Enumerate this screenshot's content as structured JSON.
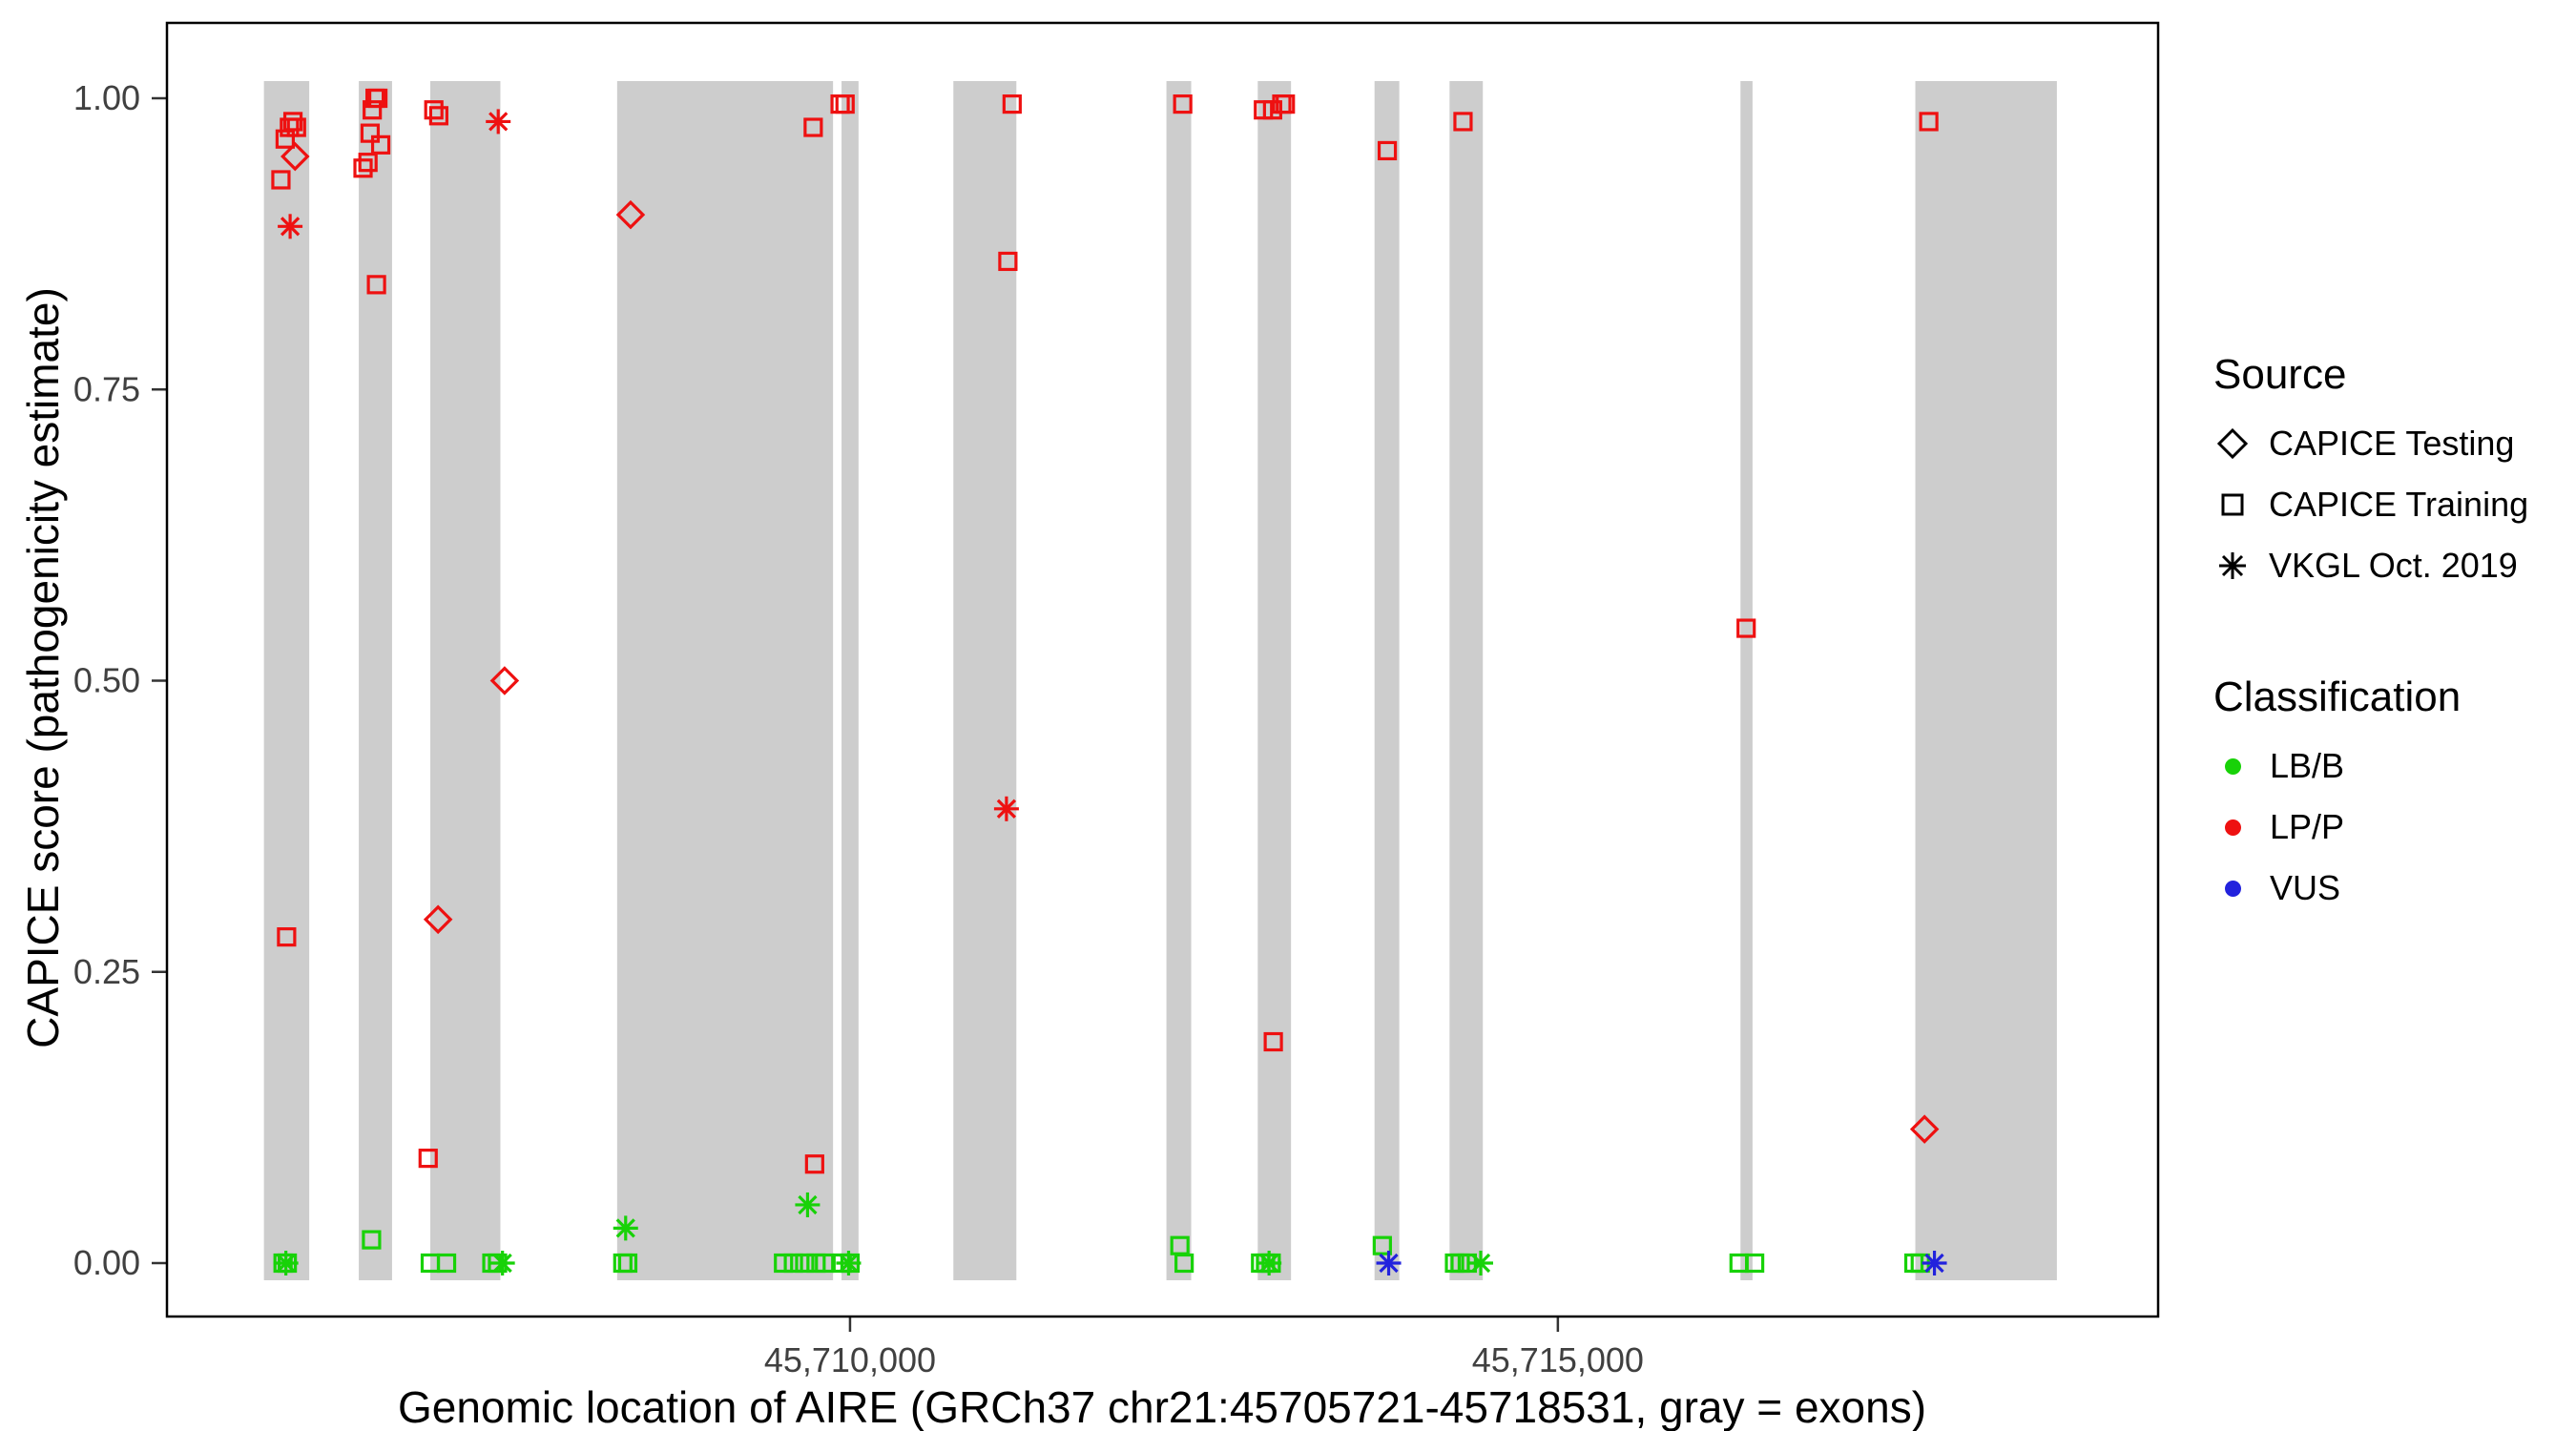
{
  "figure": {
    "x_axis_label": "Genomic location of AIRE (GRCh37 chr21:45705721-45718531, gray = exons)",
    "y_axis_label": "CAPICE score (pathogenicity estimate)"
  },
  "legend": {
    "source_title": "Source",
    "source_items": [
      {
        "label": "CAPICE Testing",
        "shape": "diamond"
      },
      {
        "label": "CAPICE Training",
        "shape": "square"
      },
      {
        "label": "VKGL Oct. 2019",
        "shape": "asterisk"
      }
    ],
    "classification_title": "Classification",
    "classification_items": [
      {
        "label": "LB/B",
        "class": "LB/B"
      },
      {
        "label": "LP/P",
        "class": "LP/P"
      },
      {
        "label": "VUS",
        "class": "VUS"
      }
    ]
  },
  "chart_data": {
    "type": "scatter",
    "title": "",
    "xlabel": "Genomic location of AIRE (GRCh37 chr21:45705721-45718531, gray = exons)",
    "ylabel": "CAPICE score (pathogenicity estimate)",
    "xlim": [
      45705175,
      45719240
    ],
    "ylim": [
      0,
      1
    ],
    "grid": false,
    "legend_position": "right",
    "x_ticks": [
      {
        "value": 45710000,
        "label": "45,710,000"
      },
      {
        "value": 45715000,
        "label": "45,715,000"
      }
    ],
    "y_ticks": [
      {
        "value": 0.0,
        "label": "0.00"
      },
      {
        "value": 0.25,
        "label": "0.25"
      },
      {
        "value": 0.5,
        "label": "0.50"
      },
      {
        "value": 0.75,
        "label": "0.75"
      },
      {
        "value": 1.0,
        "label": "1.00"
      }
    ],
    "exon_color": "#CDCDCD",
    "exons": [
      [
        45705860,
        45706180
      ],
      [
        45706530,
        45706765
      ],
      [
        45707035,
        45707530
      ],
      [
        45708355,
        45709880
      ],
      [
        45709940,
        45710060
      ],
      [
        45710730,
        45711175
      ],
      [
        45712235,
        45712410
      ],
      [
        45712880,
        45713115
      ],
      [
        45713705,
        45713880
      ],
      [
        45714235,
        45714470
      ],
      [
        45716290,
        45716375
      ],
      [
        45717525,
        45718525
      ]
    ],
    "colors": {
      "LB/B": "#18D208",
      "LP/P": "#EE1111",
      "VUS": "#2222DD"
    },
    "shapes": {
      "CAPICE Testing": "diamond",
      "CAPICE Training": "square",
      "VKGL Oct. 2019": "asterisk"
    },
    "points": [
      {
        "x": 45705980,
        "y": 0.93,
        "source": "CAPICE Training",
        "class": "LP/P"
      },
      {
        "x": 45706010,
        "y": 0.965,
        "source": "CAPICE Training",
        "class": "LP/P"
      },
      {
        "x": 45706040,
        "y": 0.975,
        "source": "CAPICE Training",
        "class": "LP/P"
      },
      {
        "x": 45706065,
        "y": 0.98,
        "source": "CAPICE Training",
        "class": "LP/P"
      },
      {
        "x": 45706090,
        "y": 0.975,
        "source": "CAPICE Training",
        "class": "LP/P"
      },
      {
        "x": 45706020,
        "y": 0.28,
        "source": "CAPICE Training",
        "class": "LP/P"
      },
      {
        "x": 45706560,
        "y": 0.94,
        "source": "CAPICE Training",
        "class": "LP/P"
      },
      {
        "x": 45706595,
        "y": 0.945,
        "source": "CAPICE Training",
        "class": "LP/P"
      },
      {
        "x": 45706610,
        "y": 0.97,
        "source": "CAPICE Training",
        "class": "LP/P"
      },
      {
        "x": 45706625,
        "y": 0.99,
        "source": "CAPICE Training",
        "class": "LP/P"
      },
      {
        "x": 45706645,
        "y": 1.0,
        "source": "CAPICE Training",
        "class": "LP/P"
      },
      {
        "x": 45706665,
        "y": 1.0,
        "source": "CAPICE Training",
        "class": "LP/P"
      },
      {
        "x": 45706685,
        "y": 0.96,
        "source": "CAPICE Training",
        "class": "LP/P"
      },
      {
        "x": 45706655,
        "y": 0.84,
        "source": "CAPICE Training",
        "class": "LP/P"
      },
      {
        "x": 45707060,
        "y": 0.99,
        "source": "CAPICE Training",
        "class": "LP/P"
      },
      {
        "x": 45707095,
        "y": 0.985,
        "source": "CAPICE Training",
        "class": "LP/P"
      },
      {
        "x": 45707020,
        "y": 0.09,
        "source": "CAPICE Training",
        "class": "LP/P"
      },
      {
        "x": 45709740,
        "y": 0.975,
        "source": "CAPICE Training",
        "class": "LP/P"
      },
      {
        "x": 45709930,
        "y": 0.995,
        "source": "CAPICE Training",
        "class": "LP/P"
      },
      {
        "x": 45709965,
        "y": 0.995,
        "source": "CAPICE Training",
        "class": "LP/P"
      },
      {
        "x": 45709750,
        "y": 0.085,
        "source": "CAPICE Training",
        "class": "LP/P"
      },
      {
        "x": 45711145,
        "y": 0.995,
        "source": "CAPICE Training",
        "class": "LP/P"
      },
      {
        "x": 45711115,
        "y": 0.86,
        "source": "CAPICE Training",
        "class": "LP/P"
      },
      {
        "x": 45712350,
        "y": 0.995,
        "source": "CAPICE Training",
        "class": "LP/P"
      },
      {
        "x": 45712920,
        "y": 0.99,
        "source": "CAPICE Training",
        "class": "LP/P"
      },
      {
        "x": 45712985,
        "y": 0.99,
        "source": "CAPICE Training",
        "class": "LP/P"
      },
      {
        "x": 45713050,
        "y": 0.995,
        "source": "CAPICE Training",
        "class": "LP/P"
      },
      {
        "x": 45713075,
        "y": 0.995,
        "source": "CAPICE Training",
        "class": "LP/P"
      },
      {
        "x": 45712990,
        "y": 0.19,
        "source": "CAPICE Training",
        "class": "LP/P"
      },
      {
        "x": 45713795,
        "y": 0.955,
        "source": "CAPICE Training",
        "class": "LP/P"
      },
      {
        "x": 45714330,
        "y": 0.98,
        "source": "CAPICE Training",
        "class": "LP/P"
      },
      {
        "x": 45716330,
        "y": 0.545,
        "source": "CAPICE Training",
        "class": "LP/P"
      },
      {
        "x": 45717620,
        "y": 0.98,
        "source": "CAPICE Training",
        "class": "LP/P"
      },
      {
        "x": 45705995,
        "y": 0.0,
        "source": "CAPICE Training",
        "class": "LB/B"
      },
      {
        "x": 45706025,
        "y": 0.0,
        "source": "CAPICE Training",
        "class": "LB/B"
      },
      {
        "x": 45706620,
        "y": 0.02,
        "source": "CAPICE Training",
        "class": "LB/B"
      },
      {
        "x": 45707035,
        "y": 0.0,
        "source": "CAPICE Training",
        "class": "LB/B"
      },
      {
        "x": 45707150,
        "y": 0.0,
        "source": "CAPICE Training",
        "class": "LB/B"
      },
      {
        "x": 45707470,
        "y": 0.0,
        "source": "CAPICE Training",
        "class": "LB/B"
      },
      {
        "x": 45707510,
        "y": 0.0,
        "source": "CAPICE Training",
        "class": "LB/B"
      },
      {
        "x": 45708395,
        "y": 0.0,
        "source": "CAPICE Training",
        "class": "LB/B"
      },
      {
        "x": 45708430,
        "y": 0.0,
        "source": "CAPICE Training",
        "class": "LB/B"
      },
      {
        "x": 45709530,
        "y": 0.0,
        "source": "CAPICE Training",
        "class": "LB/B"
      },
      {
        "x": 45709600,
        "y": 0.0,
        "source": "CAPICE Training",
        "class": "LB/B"
      },
      {
        "x": 45709680,
        "y": 0.0,
        "source": "CAPICE Training",
        "class": "LB/B"
      },
      {
        "x": 45709760,
        "y": 0.0,
        "source": "CAPICE Training",
        "class": "LB/B"
      },
      {
        "x": 45709820,
        "y": 0.0,
        "source": "CAPICE Training",
        "class": "LB/B"
      },
      {
        "x": 45709945,
        "y": 0.0,
        "source": "CAPICE Training",
        "class": "LB/B"
      },
      {
        "x": 45710000,
        "y": 0.0,
        "source": "CAPICE Training",
        "class": "LB/B"
      },
      {
        "x": 45712330,
        "y": 0.015,
        "source": "CAPICE Training",
        "class": "LB/B"
      },
      {
        "x": 45712360,
        "y": 0.0,
        "source": "CAPICE Training",
        "class": "LB/B"
      },
      {
        "x": 45712900,
        "y": 0.0,
        "source": "CAPICE Training",
        "class": "LB/B"
      },
      {
        "x": 45712935,
        "y": 0.0,
        "source": "CAPICE Training",
        "class": "LB/B"
      },
      {
        "x": 45712975,
        "y": 0.0,
        "source": "CAPICE Training",
        "class": "LB/B"
      },
      {
        "x": 45713760,
        "y": 0.015,
        "source": "CAPICE Training",
        "class": "LB/B"
      },
      {
        "x": 45714270,
        "y": 0.0,
        "source": "CAPICE Training",
        "class": "LB/B"
      },
      {
        "x": 45714310,
        "y": 0.0,
        "source": "CAPICE Training",
        "class": "LB/B"
      },
      {
        "x": 45714360,
        "y": 0.0,
        "source": "CAPICE Training",
        "class": "LB/B"
      },
      {
        "x": 45716280,
        "y": 0.0,
        "source": "CAPICE Training",
        "class": "LB/B"
      },
      {
        "x": 45716390,
        "y": 0.0,
        "source": "CAPICE Training",
        "class": "LB/B"
      },
      {
        "x": 45717515,
        "y": 0.0,
        "source": "CAPICE Training",
        "class": "LB/B"
      },
      {
        "x": 45717560,
        "y": 0.0,
        "source": "CAPICE Training",
        "class": "LB/B"
      },
      {
        "x": 45706080,
        "y": 0.95,
        "source": "CAPICE Testing",
        "class": "LP/P"
      },
      {
        "x": 45707090,
        "y": 0.295,
        "source": "CAPICE Testing",
        "class": "LP/P"
      },
      {
        "x": 45707560,
        "y": 0.5,
        "source": "CAPICE Testing",
        "class": "LP/P"
      },
      {
        "x": 45708450,
        "y": 0.9,
        "source": "CAPICE Testing",
        "class": "LP/P"
      },
      {
        "x": 45717590,
        "y": 0.115,
        "source": "CAPICE Testing",
        "class": "LP/P"
      },
      {
        "x": 45706045,
        "y": 0.89,
        "source": "VKGL Oct. 2019",
        "class": "LP/P"
      },
      {
        "x": 45707515,
        "y": 0.98,
        "source": "VKGL Oct. 2019",
        "class": "LP/P"
      },
      {
        "x": 45711105,
        "y": 0.39,
        "source": "VKGL Oct. 2019",
        "class": "LP/P"
      },
      {
        "x": 45708415,
        "y": 0.03,
        "source": "VKGL Oct. 2019",
        "class": "LB/B"
      },
      {
        "x": 45709700,
        "y": 0.05,
        "source": "VKGL Oct. 2019",
        "class": "LB/B"
      },
      {
        "x": 45706015,
        "y": 0.0,
        "source": "VKGL Oct. 2019",
        "class": "LB/B"
      },
      {
        "x": 45707545,
        "y": 0.0,
        "source": "VKGL Oct. 2019",
        "class": "LB/B"
      },
      {
        "x": 45709990,
        "y": 0.0,
        "source": "VKGL Oct. 2019",
        "class": "LB/B"
      },
      {
        "x": 45712960,
        "y": 0.0,
        "source": "VKGL Oct. 2019",
        "class": "LB/B"
      },
      {
        "x": 45714455,
        "y": 0.0,
        "source": "VKGL Oct. 2019",
        "class": "LB/B"
      },
      {
        "x": 45713805,
        "y": 0.0,
        "source": "VKGL Oct. 2019",
        "class": "VUS"
      },
      {
        "x": 45717660,
        "y": 0.0,
        "source": "VKGL Oct. 2019",
        "class": "VUS"
      }
    ]
  }
}
